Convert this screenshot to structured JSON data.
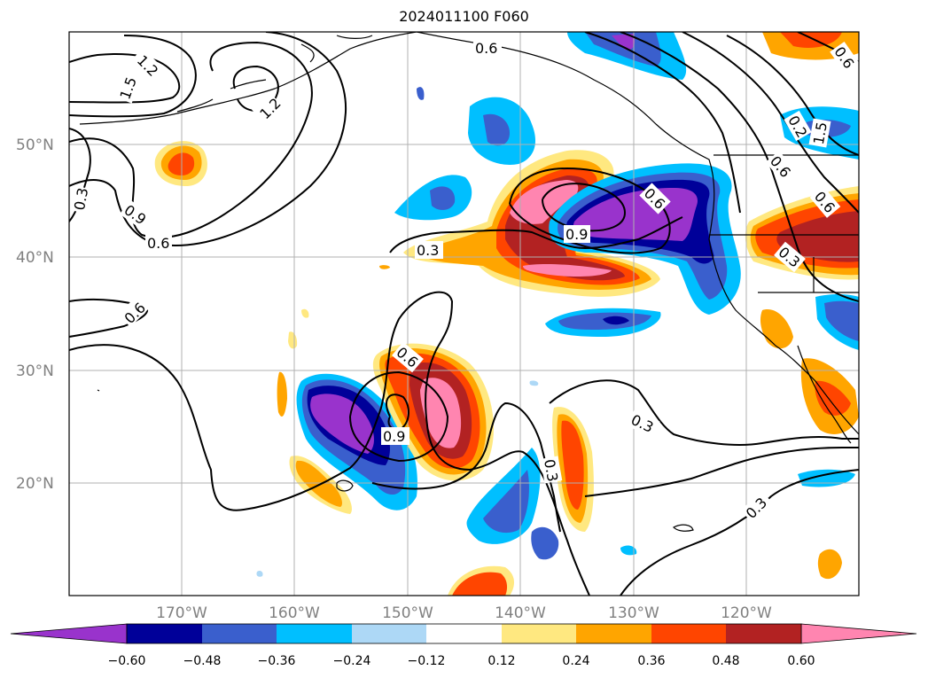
{
  "title": "2024011100 F060",
  "latitude_labels": [
    "50°N",
    "40°N",
    "30°N",
    "20°N"
  ],
  "longitude_labels": [
    "170°W",
    "160°W",
    "150°W",
    "140°W",
    "130°W",
    "120°W"
  ],
  "colorbar": {
    "ticks": [
      "−0.60",
      "−0.48",
      "−0.36",
      "−0.24",
      "−0.12",
      "0.12",
      "0.24",
      "0.36",
      "0.48",
      "0.60"
    ],
    "colors": [
      "#9933cc",
      "#000099",
      "#3a5fcd",
      "#00bfff",
      "#add8f6",
      "#ffffff",
      "#ffe880",
      "#ffa500",
      "#ff4500",
      "#b22222",
      "#ff85b0"
    ]
  },
  "contour_labels": [
    "1.2",
    "1.5",
    "1.2",
    "0.9",
    "0.6",
    "0.3",
    "0.6",
    "0.3",
    "0.9",
    "0.6",
    "0.6",
    "0.9",
    "0.6",
    "0.3",
    "0.3",
    "0.3",
    "0.6",
    "0.3",
    "0.6",
    "0.2",
    "1.5",
    "0.6"
  ]
}
